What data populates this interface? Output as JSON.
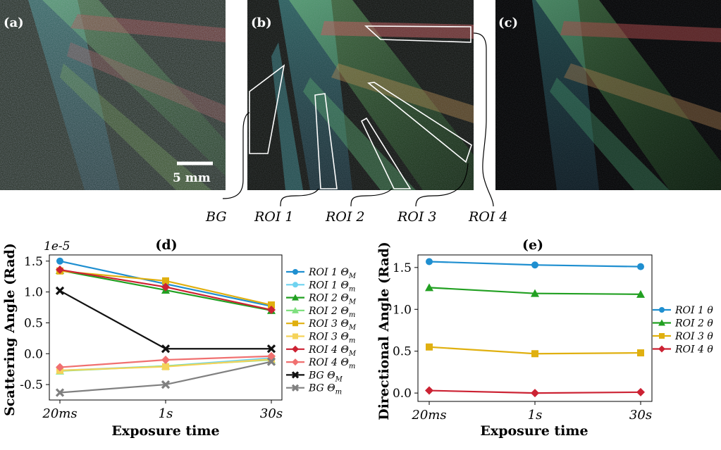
{
  "panels": {
    "a": {
      "label": "(a)",
      "scale_bar": "5 mm"
    },
    "b": {
      "label": "(b)"
    },
    "c": {
      "label": "(c)"
    }
  },
  "roi_labels": [
    "BG",
    "ROI 1",
    "ROI 2",
    "ROI 3",
    "ROI 4"
  ],
  "colors": {
    "roi1_M": "#1f8fd0",
    "roi1_m": "#6fd3f0",
    "roi2_M": "#22a022",
    "roi2_m": "#7fe07f",
    "roi3_M": "#e0b010",
    "roi3_m": "#f5d35a",
    "roi4_M": "#cc2233",
    "roi4_m": "#f07070",
    "bg_M": "#111111",
    "bg_m": "#808080"
  },
  "chart_data": [
    {
      "id": "d",
      "type": "line",
      "title": "(d)",
      "xlabel": "Exposure time",
      "ylabel": "Scattering Angle (Rad)",
      "offset_label": "1e-5",
      "categories": [
        "20ms",
        "1s",
        "30s"
      ],
      "ylim": [
        -0.75,
        1.6
      ],
      "yticks": [
        -0.5,
        0.0,
        0.5,
        1.0,
        1.5
      ],
      "ytick_labels": [
        "-0.5",
        "0.0",
        "0.5",
        "1.0",
        "1.5"
      ],
      "legend_position": "right",
      "series": [
        {
          "name": "ROI 1 Θ",
          "sub": "M",
          "color": "#1f8fd0",
          "marker": "circle",
          "values": [
            1.5,
            1.13,
            0.77
          ]
        },
        {
          "name": "ROI 1 Θ",
          "sub": "m",
          "color": "#6fd3f0",
          "marker": "circle",
          "values": [
            -0.27,
            -0.2,
            -0.07
          ]
        },
        {
          "name": "ROI 2 Θ",
          "sub": "M",
          "color": "#22a022",
          "marker": "triangle",
          "values": [
            1.35,
            1.03,
            0.7
          ]
        },
        {
          "name": "ROI 2 Θ",
          "sub": "m",
          "color": "#7fe07f",
          "marker": "triangle",
          "values": [
            -0.28,
            -0.2,
            -0.1
          ]
        },
        {
          "name": "ROI 3 Θ",
          "sub": "M",
          "color": "#e0b010",
          "marker": "square",
          "values": [
            1.34,
            1.18,
            0.79
          ]
        },
        {
          "name": "ROI 3 Θ",
          "sub": "m",
          "color": "#f5d35a",
          "marker": "square",
          "values": [
            -0.27,
            -0.21,
            -0.09
          ]
        },
        {
          "name": "ROI 4 Θ",
          "sub": "M",
          "color": "#cc2233",
          "marker": "diamond",
          "values": [
            1.36,
            1.08,
            0.71
          ]
        },
        {
          "name": "ROI 4 Θ",
          "sub": "m",
          "color": "#f07070",
          "marker": "diamond",
          "values": [
            -0.22,
            -0.1,
            -0.04
          ]
        },
        {
          "name": "BG Θ",
          "sub": "M",
          "color": "#111111",
          "marker": "x",
          "values": [
            1.02,
            0.08,
            0.08
          ]
        },
        {
          "name": "BG Θ",
          "sub": "m",
          "color": "#808080",
          "marker": "x",
          "values": [
            -0.63,
            -0.5,
            -0.13
          ]
        }
      ]
    },
    {
      "id": "e",
      "type": "line",
      "title": "(e)",
      "xlabel": "Exposure time",
      "ylabel": "Directional Angle (Rad)",
      "categories": [
        "20ms",
        "1s",
        "30s"
      ],
      "ylim": [
        -0.1,
        1.65
      ],
      "yticks": [
        0.0,
        0.5,
        1.0,
        1.5
      ],
      "ytick_labels": [
        "0.0",
        "0.5",
        "1.0",
        "1.5"
      ],
      "legend_position": "right",
      "series": [
        {
          "name": "ROI 1 θ",
          "color": "#1f8fd0",
          "marker": "circle",
          "values": [
            1.57,
            1.53,
            1.51
          ]
        },
        {
          "name": "ROI 2 θ",
          "color": "#22a022",
          "marker": "triangle",
          "values": [
            1.26,
            1.19,
            1.18
          ]
        },
        {
          "name": "ROI 3 θ",
          "color": "#e0b010",
          "marker": "square",
          "values": [
            0.55,
            0.47,
            0.48
          ]
        },
        {
          "name": "ROI 4 θ",
          "color": "#cc2233",
          "marker": "diamond",
          "values": [
            0.03,
            0.0,
            0.01
          ]
        }
      ]
    }
  ]
}
